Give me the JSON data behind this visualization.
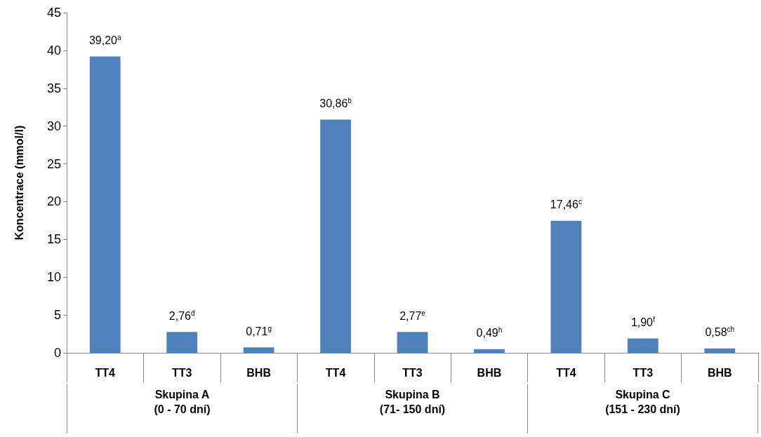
{
  "chart_data": {
    "type": "bar",
    "ylabel": "Koncentrace (mmol/l)",
    "categories": [
      "TT4",
      "TT3",
      "BHB",
      "TT4",
      "TT3",
      "BHB",
      "TT4",
      "TT3",
      "BHB"
    ],
    "values": [
      39.2,
      2.76,
      0.71,
      30.86,
      2.77,
      0.49,
      17.46,
      1.9,
      0.58
    ],
    "value_labels": [
      "39,20$^{a}$",
      "2,76$^{d}$",
      "0,71$^{g}$",
      "30,86$^{b}$",
      "2,77$^{e}$",
      "0,49$^{h}$",
      "17,46$^{c}$",
      "1,90$^{f}$",
      "0,58$^{ch}$"
    ],
    "color": "#4f81bd",
    "ylim": [
      0,
      45
    ],
    "yticks": [
      0,
      5,
      10,
      15,
      20,
      25,
      30,
      35,
      40,
      45
    ],
    "grid": false,
    "annotations": [
      "Skupina A\n(0 - 70 dní)",
      "Skupina B\n(71- 150 dní)",
      "Skupina C\n(151 - 230 dní)"
    ]
  }
}
